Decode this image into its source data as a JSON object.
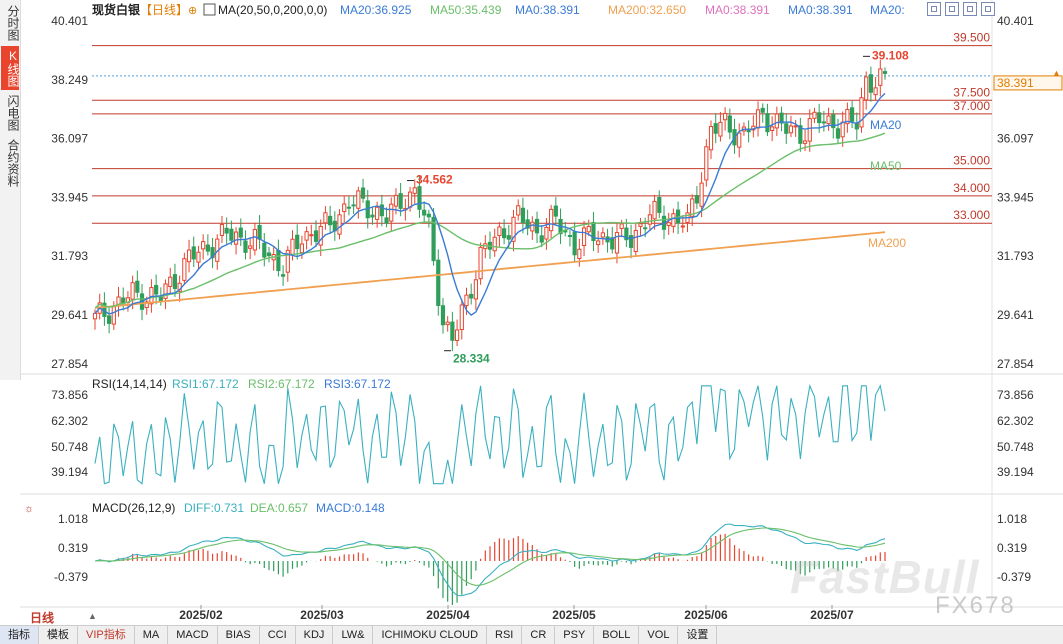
{
  "header": {
    "title": "现货白银",
    "period": "【日线】",
    "ma_params": "MA(20,50,0,200,0,0)",
    "ma_values": [
      {
        "label": "MA20:36.925",
        "color": "#3a7bd5"
      },
      {
        "label": "MA50:35.439",
        "color": "#6abf69"
      },
      {
        "label": "MA0:38.391",
        "color": "#3a7bd5"
      },
      {
        "label": "MA200:32.650",
        "color": "#f0a050"
      },
      {
        "label": "MA0:38.391",
        "color": "#e070c0"
      },
      {
        "label": "MA0:38.391",
        "color": "#3a7bd5"
      },
      {
        "label": "MA20:",
        "color": "#3a7bd5"
      }
    ]
  },
  "side_tabs": [
    {
      "label": "分时图",
      "active": false
    },
    {
      "label": "K线图",
      "active": true
    },
    {
      "label": "闪电图",
      "active": false
    },
    {
      "label": "合约资料",
      "active": false
    }
  ],
  "colors": {
    "up": "#e8442e",
    "down": "#2e9e5a",
    "ma20": "#3a7bd5",
    "ma50": "#6abf69",
    "ma200": "#f0a050",
    "hline": "#c0392b",
    "price": "#e07d00"
  },
  "chart_data": [
    {
      "type": "candlestick",
      "name": "main",
      "y_ticks": [
        "40.401",
        "38.249",
        "36.097",
        "33.945",
        "31.793",
        "29.641",
        "27.854"
      ],
      "ylim": [
        27.854,
        40.401
      ],
      "x_ticks": [
        "2025/02",
        "2025/03",
        "2025/04",
        "2025/05",
        "2025/06",
        "2025/07"
      ],
      "current_price": "38.391",
      "hlines": [
        {
          "label": "39.500",
          "value": 39.5
        },
        {
          "label": "37.500",
          "value": 37.5
        },
        {
          "label": "37.000",
          "value": 37.0
        },
        {
          "label": "35.000",
          "value": 35.0
        },
        {
          "label": "34.000",
          "value": 34.0
        },
        {
          "label": "33.000",
          "value": 33.0
        }
      ],
      "annotations": [
        {
          "label": "39.108",
          "value": 39.108,
          "color": "#e8442e"
        },
        {
          "label": "34.562",
          "value": 34.562,
          "color": "#e8442e"
        },
        {
          "label": "28.334",
          "value": 28.334,
          "color": "#2e9e5a"
        }
      ],
      "ma_labels": [
        "MA20",
        "MA50",
        "MA200"
      ]
    },
    {
      "type": "line",
      "name": "RSI",
      "title": "RSI(14,14,14)",
      "legend": [
        {
          "label": "RSI1:67.172",
          "color": "#3ab0c0"
        },
        {
          "label": "RSI2:67.172",
          "color": "#6abf69"
        },
        {
          "label": "RSI3:67.172",
          "color": "#3a7bd5"
        }
      ],
      "y_ticks": [
        "73.856",
        "62.302",
        "50.748",
        "39.194"
      ]
    },
    {
      "type": "bar",
      "name": "MACD",
      "title": "MACD(26,12,9)",
      "legend": [
        {
          "label": "DIFF:0.731",
          "color": "#3ab0c0"
        },
        {
          "label": "DEA:0.657",
          "color": "#6abf69"
        },
        {
          "label": "MACD:0.148",
          "color": "#3a7bd5"
        }
      ],
      "y_ticks": [
        "1.018",
        "0.319",
        "-0.379"
      ]
    }
  ],
  "footer": {
    "period_selector": "日线",
    "tabs": [
      {
        "label": "指标",
        "active": true,
        "vip": false
      },
      {
        "label": "模板",
        "active": false,
        "vip": false
      },
      {
        "label": "VIP指标",
        "active": false,
        "vip": true
      },
      {
        "label": "MA",
        "active": false,
        "vip": false
      },
      {
        "label": "MACD",
        "active": false,
        "vip": false
      },
      {
        "label": "BIAS",
        "active": false,
        "vip": false
      },
      {
        "label": "CCI",
        "active": false,
        "vip": false
      },
      {
        "label": "KDJ",
        "active": false,
        "vip": false
      },
      {
        "label": "LW&",
        "active": false,
        "vip": false
      },
      {
        "label": "ICHIMOKU CLOUD",
        "active": false,
        "vip": false
      },
      {
        "label": "RSI",
        "active": false,
        "vip": false
      },
      {
        "label": "CR",
        "active": false,
        "vip": false
      },
      {
        "label": "PSY",
        "active": false,
        "vip": false
      },
      {
        "label": "BOLL",
        "active": false,
        "vip": false
      },
      {
        "label": "VOL",
        "active": false,
        "vip": false
      },
      {
        "label": "设置",
        "active": false,
        "vip": false
      }
    ]
  },
  "watermark": "FastBull",
  "watermark_sub": "FX678"
}
